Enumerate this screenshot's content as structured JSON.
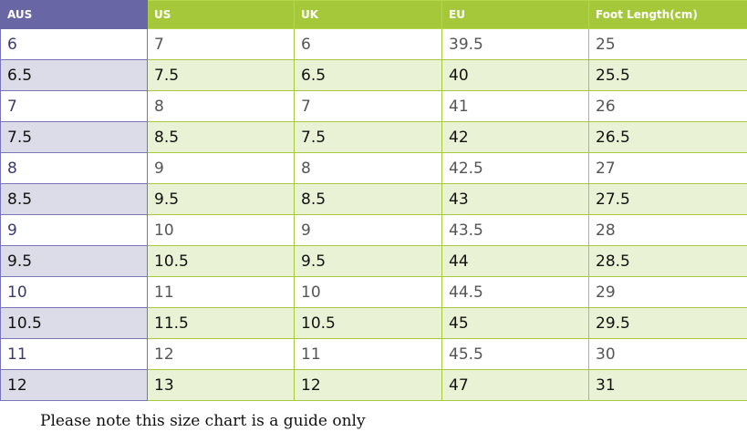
{
  "table": {
    "headers": [
      "AUS",
      "US",
      "UK",
      "EU",
      "Foot Length(cm)"
    ],
    "rows": [
      [
        "6",
        "7",
        "6",
        "39.5",
        "25"
      ],
      [
        "6.5",
        "7.5",
        "6.5",
        "40",
        "25.5"
      ],
      [
        "7",
        "8",
        "7",
        "41",
        "26"
      ],
      [
        "7.5",
        "8.5",
        "7.5",
        "42",
        "26.5"
      ],
      [
        "8",
        "9",
        "8",
        "42.5",
        "27"
      ],
      [
        "8.5",
        "9.5",
        "8.5",
        "43",
        "27.5"
      ],
      [
        "9",
        "10",
        "9",
        "43.5",
        "28"
      ],
      [
        "9.5",
        "10.5",
        "9.5",
        "44",
        "28.5"
      ],
      [
        "10",
        "11",
        "10",
        "44.5",
        "29"
      ],
      [
        "10.5",
        "11.5",
        "10.5",
        "45",
        "29.5"
      ],
      [
        "11",
        "12",
        "11",
        "45.5",
        "30"
      ],
      [
        "12",
        "13",
        "12",
        "47",
        "31"
      ]
    ]
  },
  "note": "Please note this size chart is a guide only",
  "colors": {
    "header_green": "#a5c83a",
    "header_purple": "#6866a4",
    "alt_green": "#eaf2d6",
    "alt_purple": "#dcdce8"
  }
}
